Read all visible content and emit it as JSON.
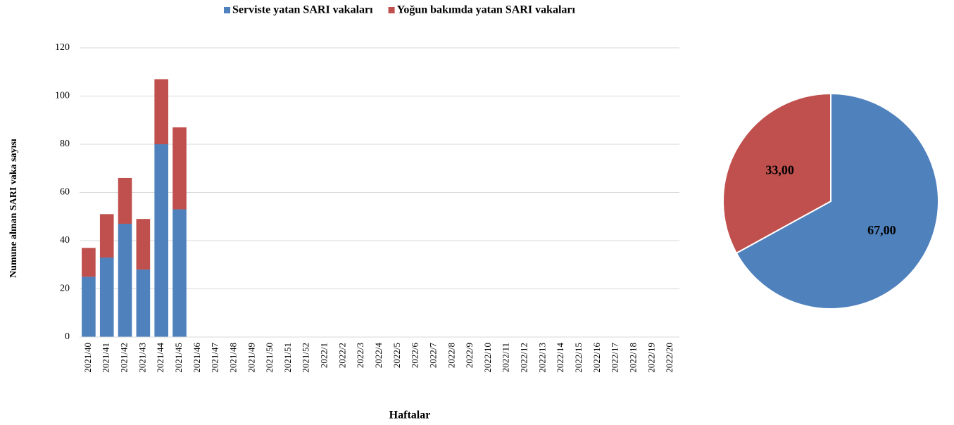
{
  "chart_data": [
    {
      "type": "bar",
      "stacked": true,
      "y_label": "Numune alınan SARI vaka sayısı",
      "x_label": "Haftalar",
      "categories": [
        "2021/40",
        "2021/41",
        "2021/42",
        "2021/43",
        "2021/44",
        "2021/45",
        "2021/46",
        "2021/47",
        "2021/48",
        "2021/49",
        "2021/50",
        "2021/51",
        "2021/52",
        "2022/1",
        "2022/2",
        "2022/3",
        "2022/4",
        "2022/5",
        "2022/6",
        "2022/7",
        "2022/8",
        "2022/9",
        "2022/10",
        "2022/11",
        "2022/12",
        "2022/13",
        "2022/14",
        "2022/15",
        "2022/16",
        "2022/17",
        "2022/18",
        "2022/19",
        "2022/20"
      ],
      "series": [
        {
          "name": "Serviste yatan SARI vakaları",
          "color": "#4f81bd",
          "values": [
            25,
            33,
            47,
            28,
            80,
            53,
            null,
            null,
            null,
            null,
            null,
            null,
            null,
            null,
            null,
            null,
            null,
            null,
            null,
            null,
            null,
            null,
            null,
            null,
            null,
            null,
            null,
            null,
            null,
            null,
            null,
            null,
            null
          ]
        },
        {
          "name": "Yoğun bakımda yatan SARI vakaları",
          "color": "#c0504d",
          "values": [
            12,
            18,
            19,
            21,
            27,
            34,
            null,
            null,
            null,
            null,
            null,
            null,
            null,
            null,
            null,
            null,
            null,
            null,
            null,
            null,
            null,
            null,
            null,
            null,
            null,
            null,
            null,
            null,
            null,
            null,
            null,
            null,
            null
          ]
        }
      ],
      "ylim": [
        0,
        120
      ],
      "yticks": [
        0,
        20,
        40,
        60,
        80,
        100,
        120
      ],
      "grid": true,
      "legend": "top"
    },
    {
      "type": "pie",
      "values": [
        67,
        33
      ],
      "value_labels": [
        "67,00",
        "33,00"
      ],
      "colors": [
        "#4f81bd",
        "#c0504d"
      ]
    }
  ]
}
